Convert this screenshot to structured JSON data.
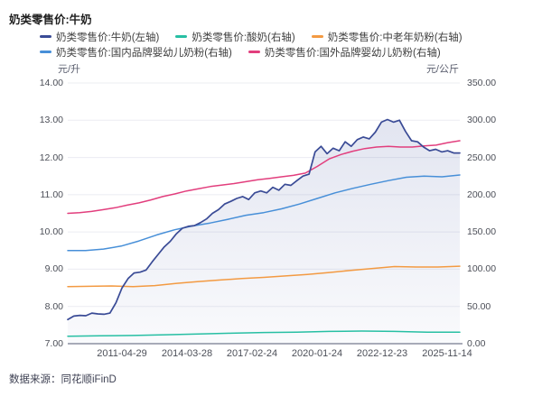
{
  "header": {
    "title": "奶类零售价:牛奶"
  },
  "footer": {
    "text": "数据来源：同花顺iFinD"
  },
  "chart_data": {
    "type": "line",
    "title": "奶类零售价:牛奶",
    "legend_position": "top",
    "grid": true,
    "grid_color": "#ebecf2",
    "axis_line_color": "#a9acb8",
    "left_axis": {
      "label": "元/升",
      "min": 7,
      "max": 14,
      "tick_labels": [
        "14.00",
        "13.00",
        "12.00",
        "11.00",
        "10.00",
        "9.00",
        "8.00",
        "7.00"
      ]
    },
    "right_axis": {
      "label": "元/公斤",
      "min": 0,
      "max": 350,
      "tick_labels": [
        "350.00",
        "300.00",
        "250.00",
        "200.00",
        "150.00",
        "100.00",
        "50.00",
        "0.00"
      ]
    },
    "x_axis": {
      "tick_labels": [
        "2011-04-29",
        "2014-03-28",
        "2017-02-24",
        "2020-01-24",
        "2022-12-23",
        "2025-11-14"
      ]
    },
    "series": [
      {
        "name": "奶类零售价:牛奶(左轴)",
        "axis": "left",
        "color": "#3a4b96",
        "area": true,
        "area_color_top": "rgba(76,94,165,0.16)",
        "area_color_bottom": "rgba(76,94,165,0.03)",
        "values": [
          7.65,
          7.74,
          7.76,
          7.75,
          7.82,
          7.8,
          7.79,
          7.82,
          8.1,
          8.5,
          8.75,
          8.9,
          8.92,
          8.98,
          9.2,
          9.4,
          9.6,
          9.75,
          9.95,
          10.1,
          10.15,
          10.17,
          10.25,
          10.35,
          10.5,
          10.6,
          10.75,
          10.82,
          10.9,
          10.95,
          10.87,
          11.05,
          11.1,
          11.05,
          11.2,
          11.12,
          11.28,
          11.25,
          11.38,
          11.5,
          11.55,
          12.15,
          12.3,
          12.1,
          12.25,
          12.18,
          12.42,
          12.3,
          12.48,
          12.55,
          12.5,
          12.68,
          12.95,
          13.02,
          12.95,
          13.0,
          12.7,
          12.45,
          12.42,
          12.28,
          12.18,
          12.22,
          12.15,
          12.18,
          12.12,
          12.12
        ]
      },
      {
        "name": "奶类零售价:酸奶(右轴)",
        "axis": "right",
        "color": "#27bfa3",
        "area": false,
        "values": [
          10,
          10.5,
          11,
          12,
          13,
          14,
          15,
          15.5,
          16.5,
          17,
          16.5,
          15.5,
          15.5
        ]
      },
      {
        "name": "奶类零售价:中老年奶粉(右轴)",
        "axis": "right",
        "color": "#f39a42",
        "area": false,
        "values": [
          76.5,
          77,
          77.5,
          76.5,
          78,
          81,
          83.5,
          85.5,
          87.5,
          89,
          91,
          93,
          95.5,
          98.5,
          101,
          103.5,
          103,
          103,
          104
        ]
      },
      {
        "name": "奶类零售价:国内品牌婴幼儿奶粉(右轴)",
        "axis": "right",
        "color": "#478fd8",
        "area": false,
        "values": [
          125,
          125,
          127,
          131,
          138,
          146,
          153,
          158,
          162,
          167,
          172.5,
          176,
          181,
          187.5,
          195,
          202.5,
          208.5,
          214,
          219,
          223.5,
          225,
          224,
          226.5
        ]
      },
      {
        "name": "奶类零售价:国外品牌婴幼儿奶粉(右轴)",
        "axis": "right",
        "color": "#e23e7d",
        "area": false,
        "values": [
          175,
          176,
          177.5,
          180,
          182.5,
          186,
          189,
          193,
          197.5,
          201,
          205,
          208,
          211,
          213,
          215,
          217.5,
          220,
          222,
          224,
          226,
          229,
          238,
          248,
          254,
          258.5,
          262,
          264,
          265,
          264,
          264,
          265.5,
          266.5,
          270,
          272.5
        ]
      }
    ],
    "legend_rows": [
      [
        0,
        1,
        2
      ],
      [
        3,
        4
      ]
    ]
  }
}
